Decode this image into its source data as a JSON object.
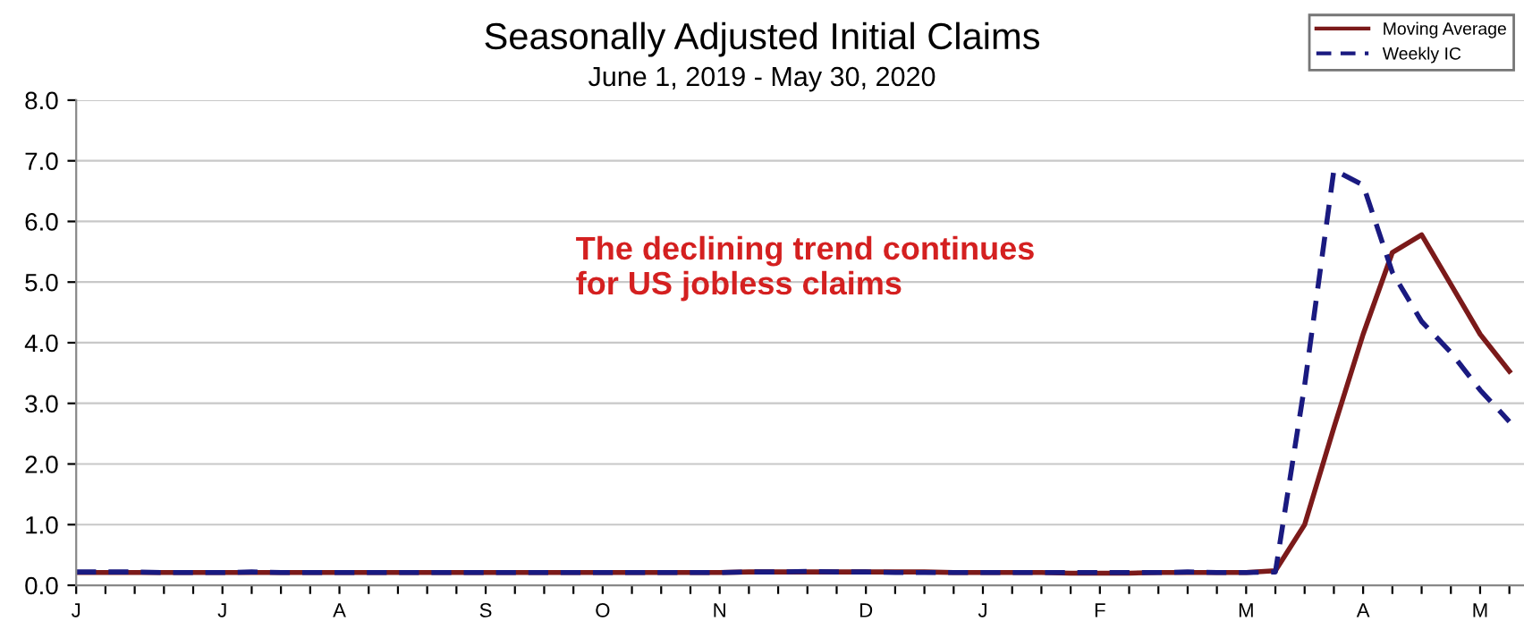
{
  "chart_data": {
    "type": "line",
    "title": "Seasonally Adjusted Initial Claims",
    "subtitle": "June 1, 2019 - May 30, 2020",
    "annotations": [
      "The declining trend continues\nfor US jobless claims"
    ],
    "categories": [
      "J",
      null,
      null,
      null,
      null,
      "J",
      null,
      null,
      null,
      "A",
      null,
      null,
      null,
      null,
      "S",
      null,
      null,
      null,
      "O",
      null,
      null,
      null,
      "N",
      null,
      null,
      null,
      null,
      "D",
      null,
      null,
      null,
      "J",
      null,
      null,
      null,
      "F",
      null,
      null,
      null,
      null,
      "M",
      null,
      null,
      null,
      "A",
      null,
      null,
      null,
      "M",
      null
    ],
    "series": [
      {
        "name": "Moving Average",
        "color": "#7b1a1a",
        "line_style": "solid",
        "values": [
          0.21,
          0.21,
          0.21,
          0.21,
          0.21,
          0.21,
          0.21,
          0.21,
          0.21,
          0.21,
          0.21,
          0.21,
          0.21,
          0.21,
          0.21,
          0.21,
          0.21,
          0.21,
          0.21,
          0.21,
          0.21,
          0.21,
          0.21,
          0.22,
          0.22,
          0.22,
          0.22,
          0.22,
          0.22,
          0.22,
          0.21,
          0.21,
          0.21,
          0.21,
          0.2,
          0.2,
          0.2,
          0.21,
          0.21,
          0.21,
          0.21,
          0.24,
          1.0,
          2.6,
          4.14,
          5.49,
          5.78,
          4.96,
          4.14,
          3.53
        ]
      },
      {
        "name": "Weekly IC",
        "color": "#1a1a80",
        "line_style": "dashed",
        "values": [
          0.22,
          0.22,
          0.22,
          0.21,
          0.21,
          0.21,
          0.22,
          0.21,
          0.21,
          0.21,
          0.21,
          0.21,
          0.21,
          0.21,
          0.21,
          0.21,
          0.21,
          0.21,
          0.21,
          0.21,
          0.21,
          0.21,
          0.21,
          0.22,
          0.22,
          0.23,
          0.22,
          0.22,
          0.21,
          0.21,
          0.21,
          0.21,
          0.21,
          0.21,
          0.21,
          0.21,
          0.21,
          0.21,
          0.22,
          0.21,
          0.21,
          0.22,
          3.3,
          6.85,
          6.6,
          5.16,
          4.35,
          3.84,
          3.22,
          2.7
        ]
      }
    ],
    "ylim": [
      0,
      8
    ],
    "yticks": [
      {
        "value": 0,
        "label": "0.0"
      },
      {
        "value": 1,
        "label": "1.0"
      },
      {
        "value": 2,
        "label": "2.0"
      },
      {
        "value": 3,
        "label": "3.0"
      },
      {
        "value": 4,
        "label": "4.0"
      },
      {
        "value": 5,
        "label": "5.0"
      },
      {
        "value": 6,
        "label": "6.0"
      },
      {
        "value": 7,
        "label": "7.0"
      },
      {
        "value": 8,
        "label": "8.0"
      }
    ],
    "grid": "y",
    "legend": "top right"
  }
}
